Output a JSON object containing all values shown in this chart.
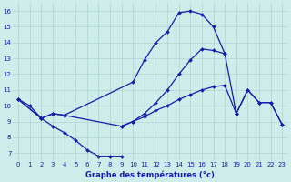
{
  "bg_color": "#cdecea",
  "grid_color": "#aed4d0",
  "line_color": "#1a1ab0",
  "xlabel": "Graphe des températures (°c)",
  "ylim": [
    6.5,
    16.5
  ],
  "xlim": [
    -0.5,
    23.5
  ],
  "yticks": [
    7,
    8,
    9,
    10,
    11,
    12,
    13,
    14,
    15,
    16
  ],
  "xticks": [
    0,
    1,
    2,
    3,
    4,
    5,
    6,
    7,
    8,
    9,
    10,
    11,
    12,
    13,
    14,
    15,
    16,
    17,
    18,
    19,
    20,
    21,
    22,
    23
  ],
  "curve1_x": [
    0,
    1,
    2,
    3,
    4,
    10,
    11,
    12,
    13,
    14,
    15,
    16,
    17,
    18
  ],
  "curve1_y": [
    10.4,
    10.0,
    9.2,
    9.5,
    9.4,
    11.5,
    12.9,
    14.0,
    14.7,
    15.9,
    16.0,
    15.8,
    15.0,
    13.3
  ],
  "curve2_x": [
    0,
    2,
    3,
    4,
    5,
    6,
    7,
    8,
    9
  ],
  "curve2_y": [
    10.4,
    9.2,
    8.7,
    8.3,
    7.8,
    7.2,
    6.8,
    6.8,
    6.8
  ],
  "curve3_x": [
    0,
    2,
    3,
    4,
    9,
    10,
    11,
    12,
    13,
    14,
    15,
    16,
    17,
    18,
    19,
    20,
    21,
    22,
    23
  ],
  "curve3_y": [
    10.4,
    9.2,
    9.5,
    9.4,
    8.7,
    9.0,
    9.5,
    10.2,
    11.0,
    12.0,
    12.9,
    13.6,
    13.5,
    13.3,
    9.5,
    11.0,
    10.2,
    10.2,
    8.8
  ],
  "curve4_x": [
    9,
    10,
    11,
    12,
    13,
    14,
    15,
    16,
    17,
    18,
    19,
    20,
    21,
    22,
    23
  ],
  "curve4_y": [
    8.7,
    9.0,
    9.3,
    9.7,
    10.0,
    10.4,
    10.7,
    11.0,
    11.2,
    11.3,
    9.5,
    11.0,
    10.2,
    10.2,
    8.8
  ]
}
